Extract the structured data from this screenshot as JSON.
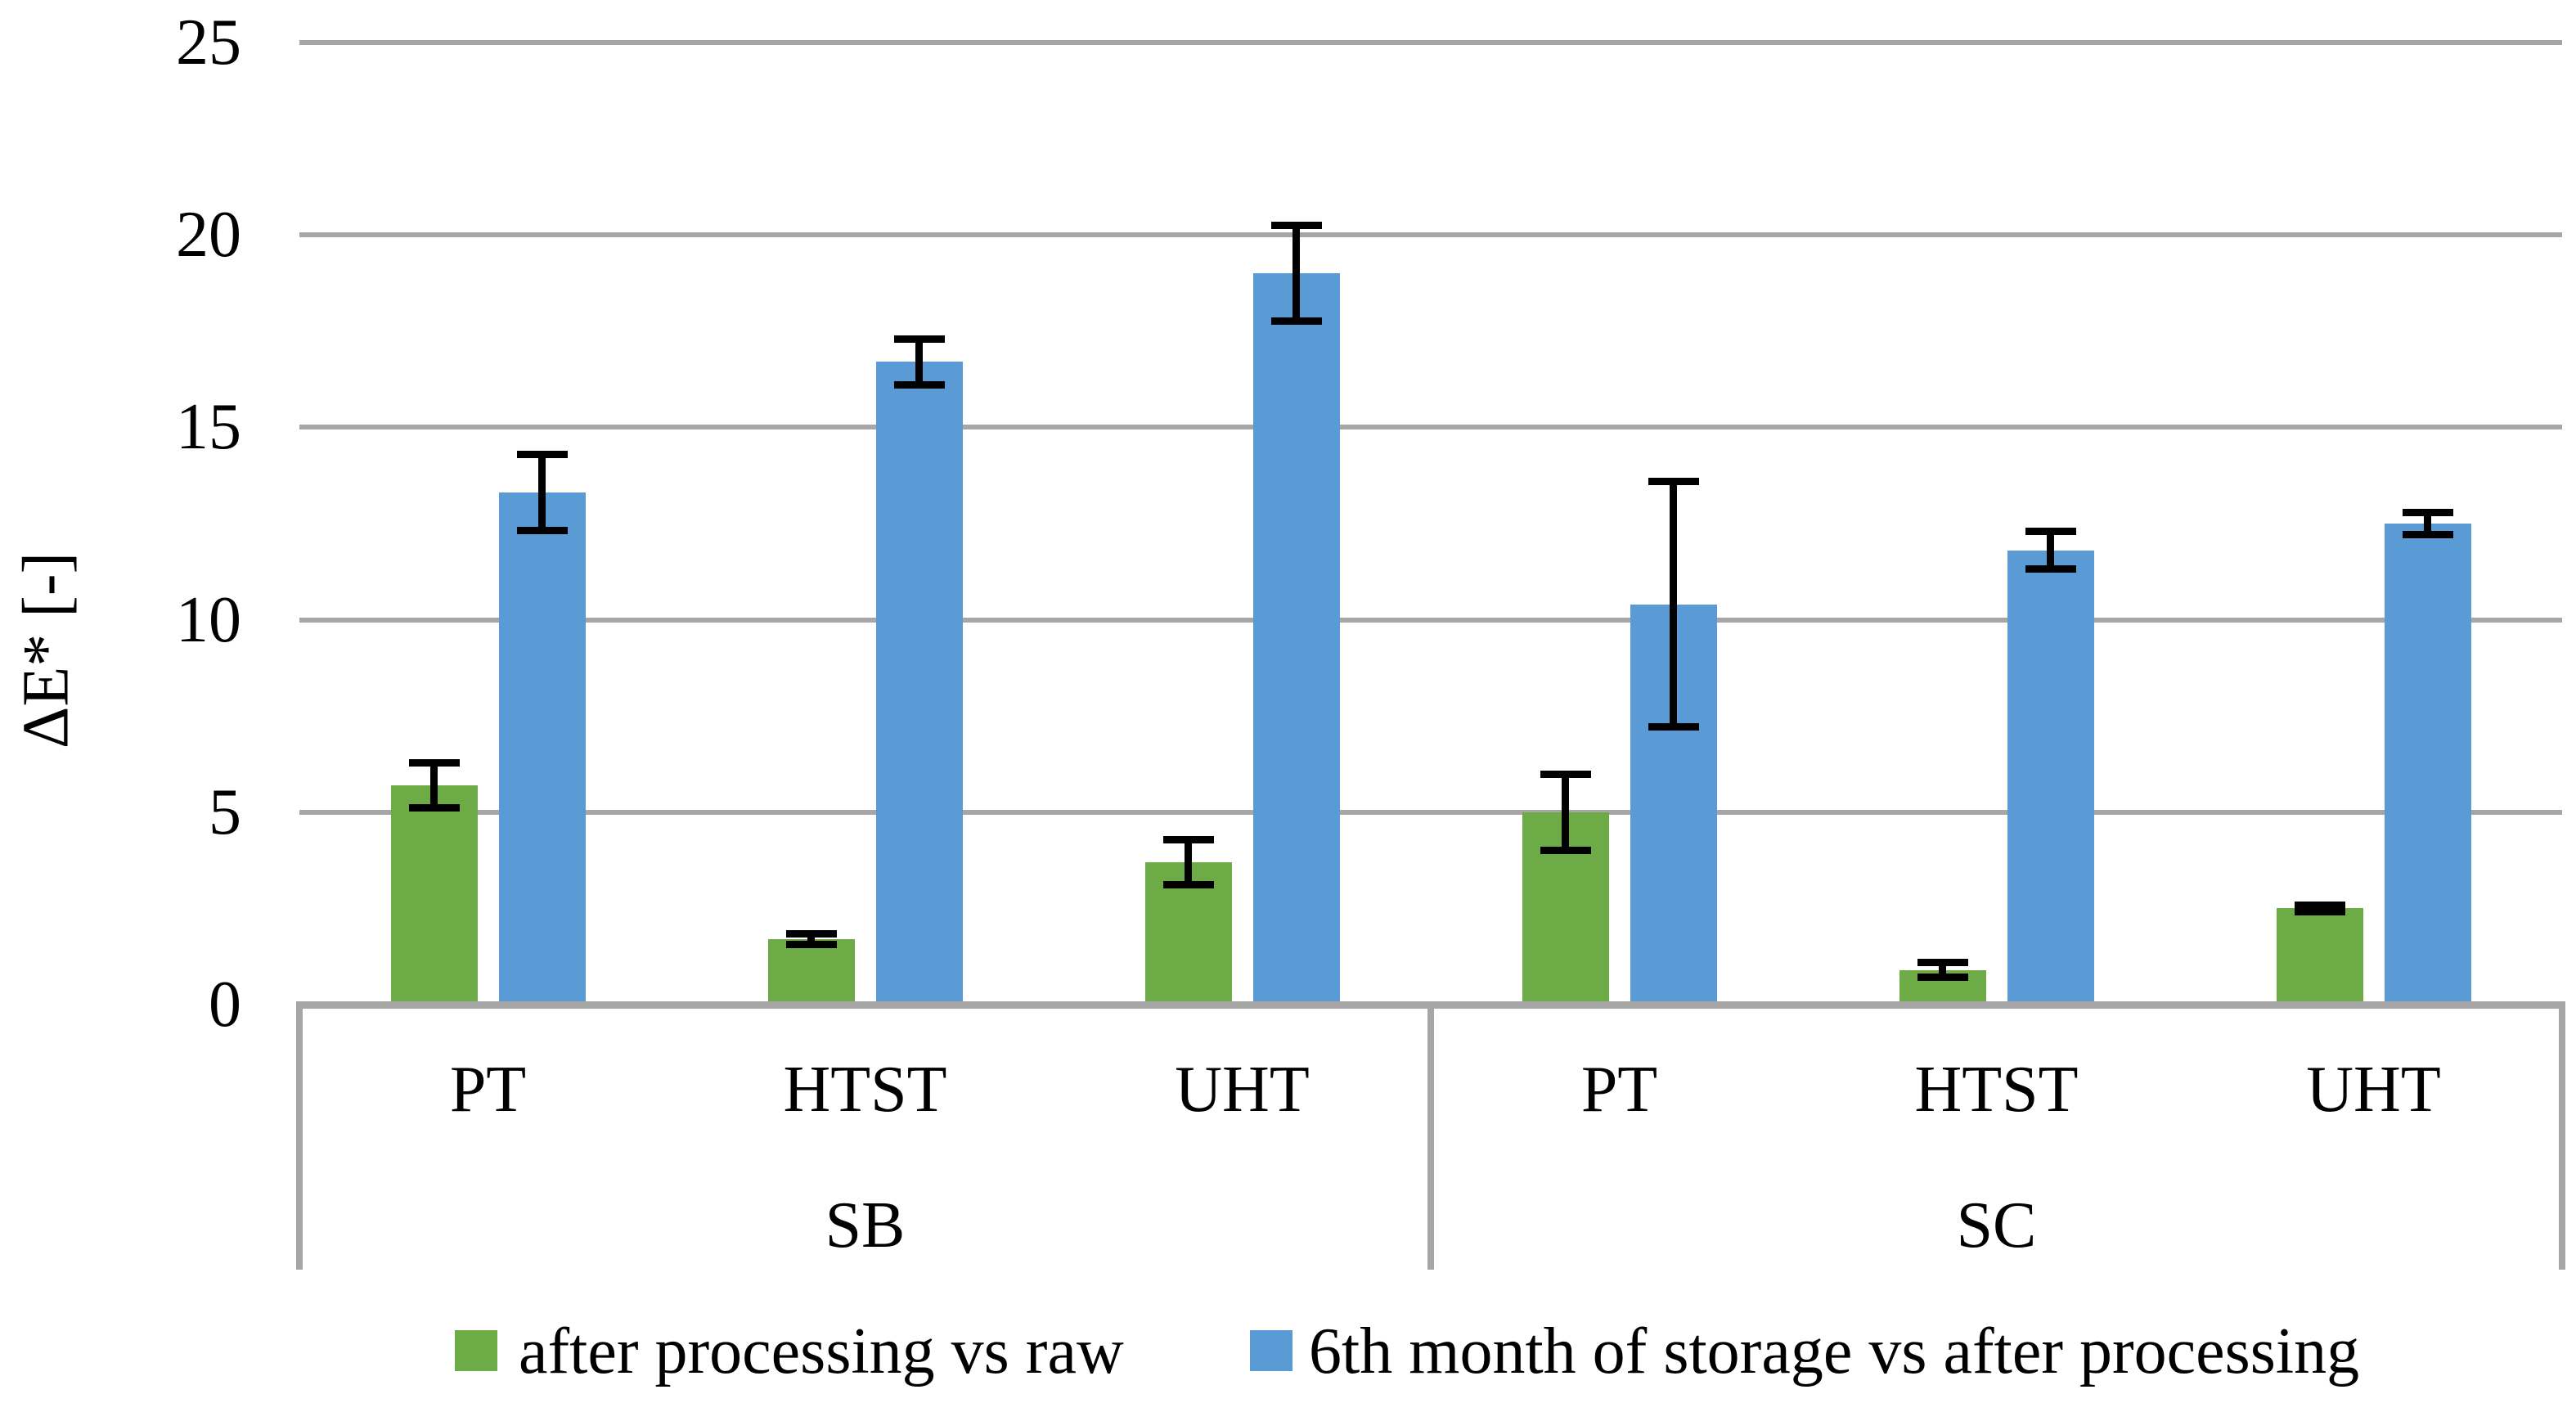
{
  "chart_data": {
    "type": "bar",
    "title": "",
    "ylabel": "ΔE* [-]",
    "xlabel": "",
    "ylim": [
      0,
      25
    ],
    "yticks": [
      0,
      5,
      10,
      15,
      20,
      25
    ],
    "grid": true,
    "legend_position": "bottom",
    "gridline_color": "#A6A6A6",
    "error_bar_color": "#000000",
    "text_color": "#000000",
    "groups": [
      {
        "label": "SB",
        "categories": [
          "PT",
          "HTST",
          "UHT"
        ]
      },
      {
        "label": "SC",
        "categories": [
          "PT",
          "HTST",
          "UHT"
        ]
      }
    ],
    "category_order": [
      "SB-PT",
      "SB-HTST",
      "SB-UHT",
      "SC-PT",
      "SC-HTST",
      "SC-UHT"
    ],
    "series": [
      {
        "name": "after processing vs raw",
        "color": "#6DAB47",
        "values": [
          5.7,
          1.7,
          3.7,
          5.0,
          0.9,
          2.5
        ],
        "errors": [
          0.6,
          0.15,
          0.6,
          1.0,
          0.2,
          0.1
        ]
      },
      {
        "name": "6th month of storage vs after processing",
        "color": "#5B9BD5",
        "values": [
          13.3,
          16.7,
          19.0,
          10.4,
          11.8,
          12.5
        ],
        "errors": [
          1.0,
          0.6,
          1.25,
          3.2,
          0.5,
          0.3
        ]
      }
    ]
  }
}
